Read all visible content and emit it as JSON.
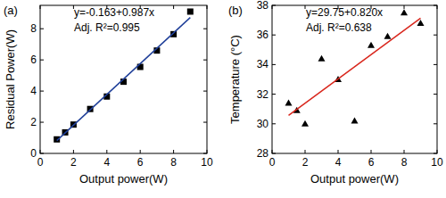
{
  "chart_data": [
    {
      "type": "scatter",
      "title": "(a)",
      "x_label": "Output power(W)",
      "y_label": "Residual Power(W)",
      "xlim": [
        0,
        10
      ],
      "xticks": [
        0,
        2,
        4,
        6,
        8,
        10
      ],
      "ylim": [
        0,
        9.5
      ],
      "yticks": [
        0,
        2,
        4,
        6,
        8
      ],
      "annotations": [
        "y=-0.163+0.987x",
        "Adj. R²=0.995"
      ],
      "series": [
        {
          "type": "scatter",
          "marker": "square",
          "color": "#000000",
          "x": [
            1,
            1.5,
            2,
            3,
            4,
            5,
            6,
            7,
            8,
            9
          ],
          "values": [
            0.9,
            1.35,
            1.85,
            2.85,
            3.65,
            4.6,
            5.55,
            6.6,
            7.65,
            9.1
          ]
        },
        {
          "type": "line",
          "line_style": "solid",
          "color": "#1f3f99",
          "x": [
            1,
            9
          ],
          "values": [
            0.824,
            8.72
          ]
        }
      ]
    },
    {
      "type": "scatter",
      "title": "(b)",
      "x_label": "Output power(W)",
      "y_label": "Temperature (°C)",
      "xlim": [
        0,
        10
      ],
      "xticks": [
        0,
        2,
        4,
        6,
        8,
        10
      ],
      "ylim": [
        28,
        38
      ],
      "yticks": [
        28,
        30,
        32,
        34,
        36,
        38
      ],
      "annotations": [
        "y=29.75+0.820x",
        "Adj. R²=0.638"
      ],
      "series": [
        {
          "type": "scatter",
          "marker": "triangle",
          "color": "#000000",
          "x": [
            1,
            1.5,
            2,
            3,
            4,
            5,
            6,
            7,
            8,
            9
          ],
          "values": [
            31.4,
            30.9,
            30.0,
            34.4,
            33.0,
            30.2,
            35.3,
            35.9,
            37.5,
            36.8
          ]
        },
        {
          "type": "line",
          "line_style": "solid",
          "color": "#d9261c",
          "x": [
            1,
            9
          ],
          "values": [
            30.57,
            37.13
          ]
        }
      ]
    }
  ]
}
